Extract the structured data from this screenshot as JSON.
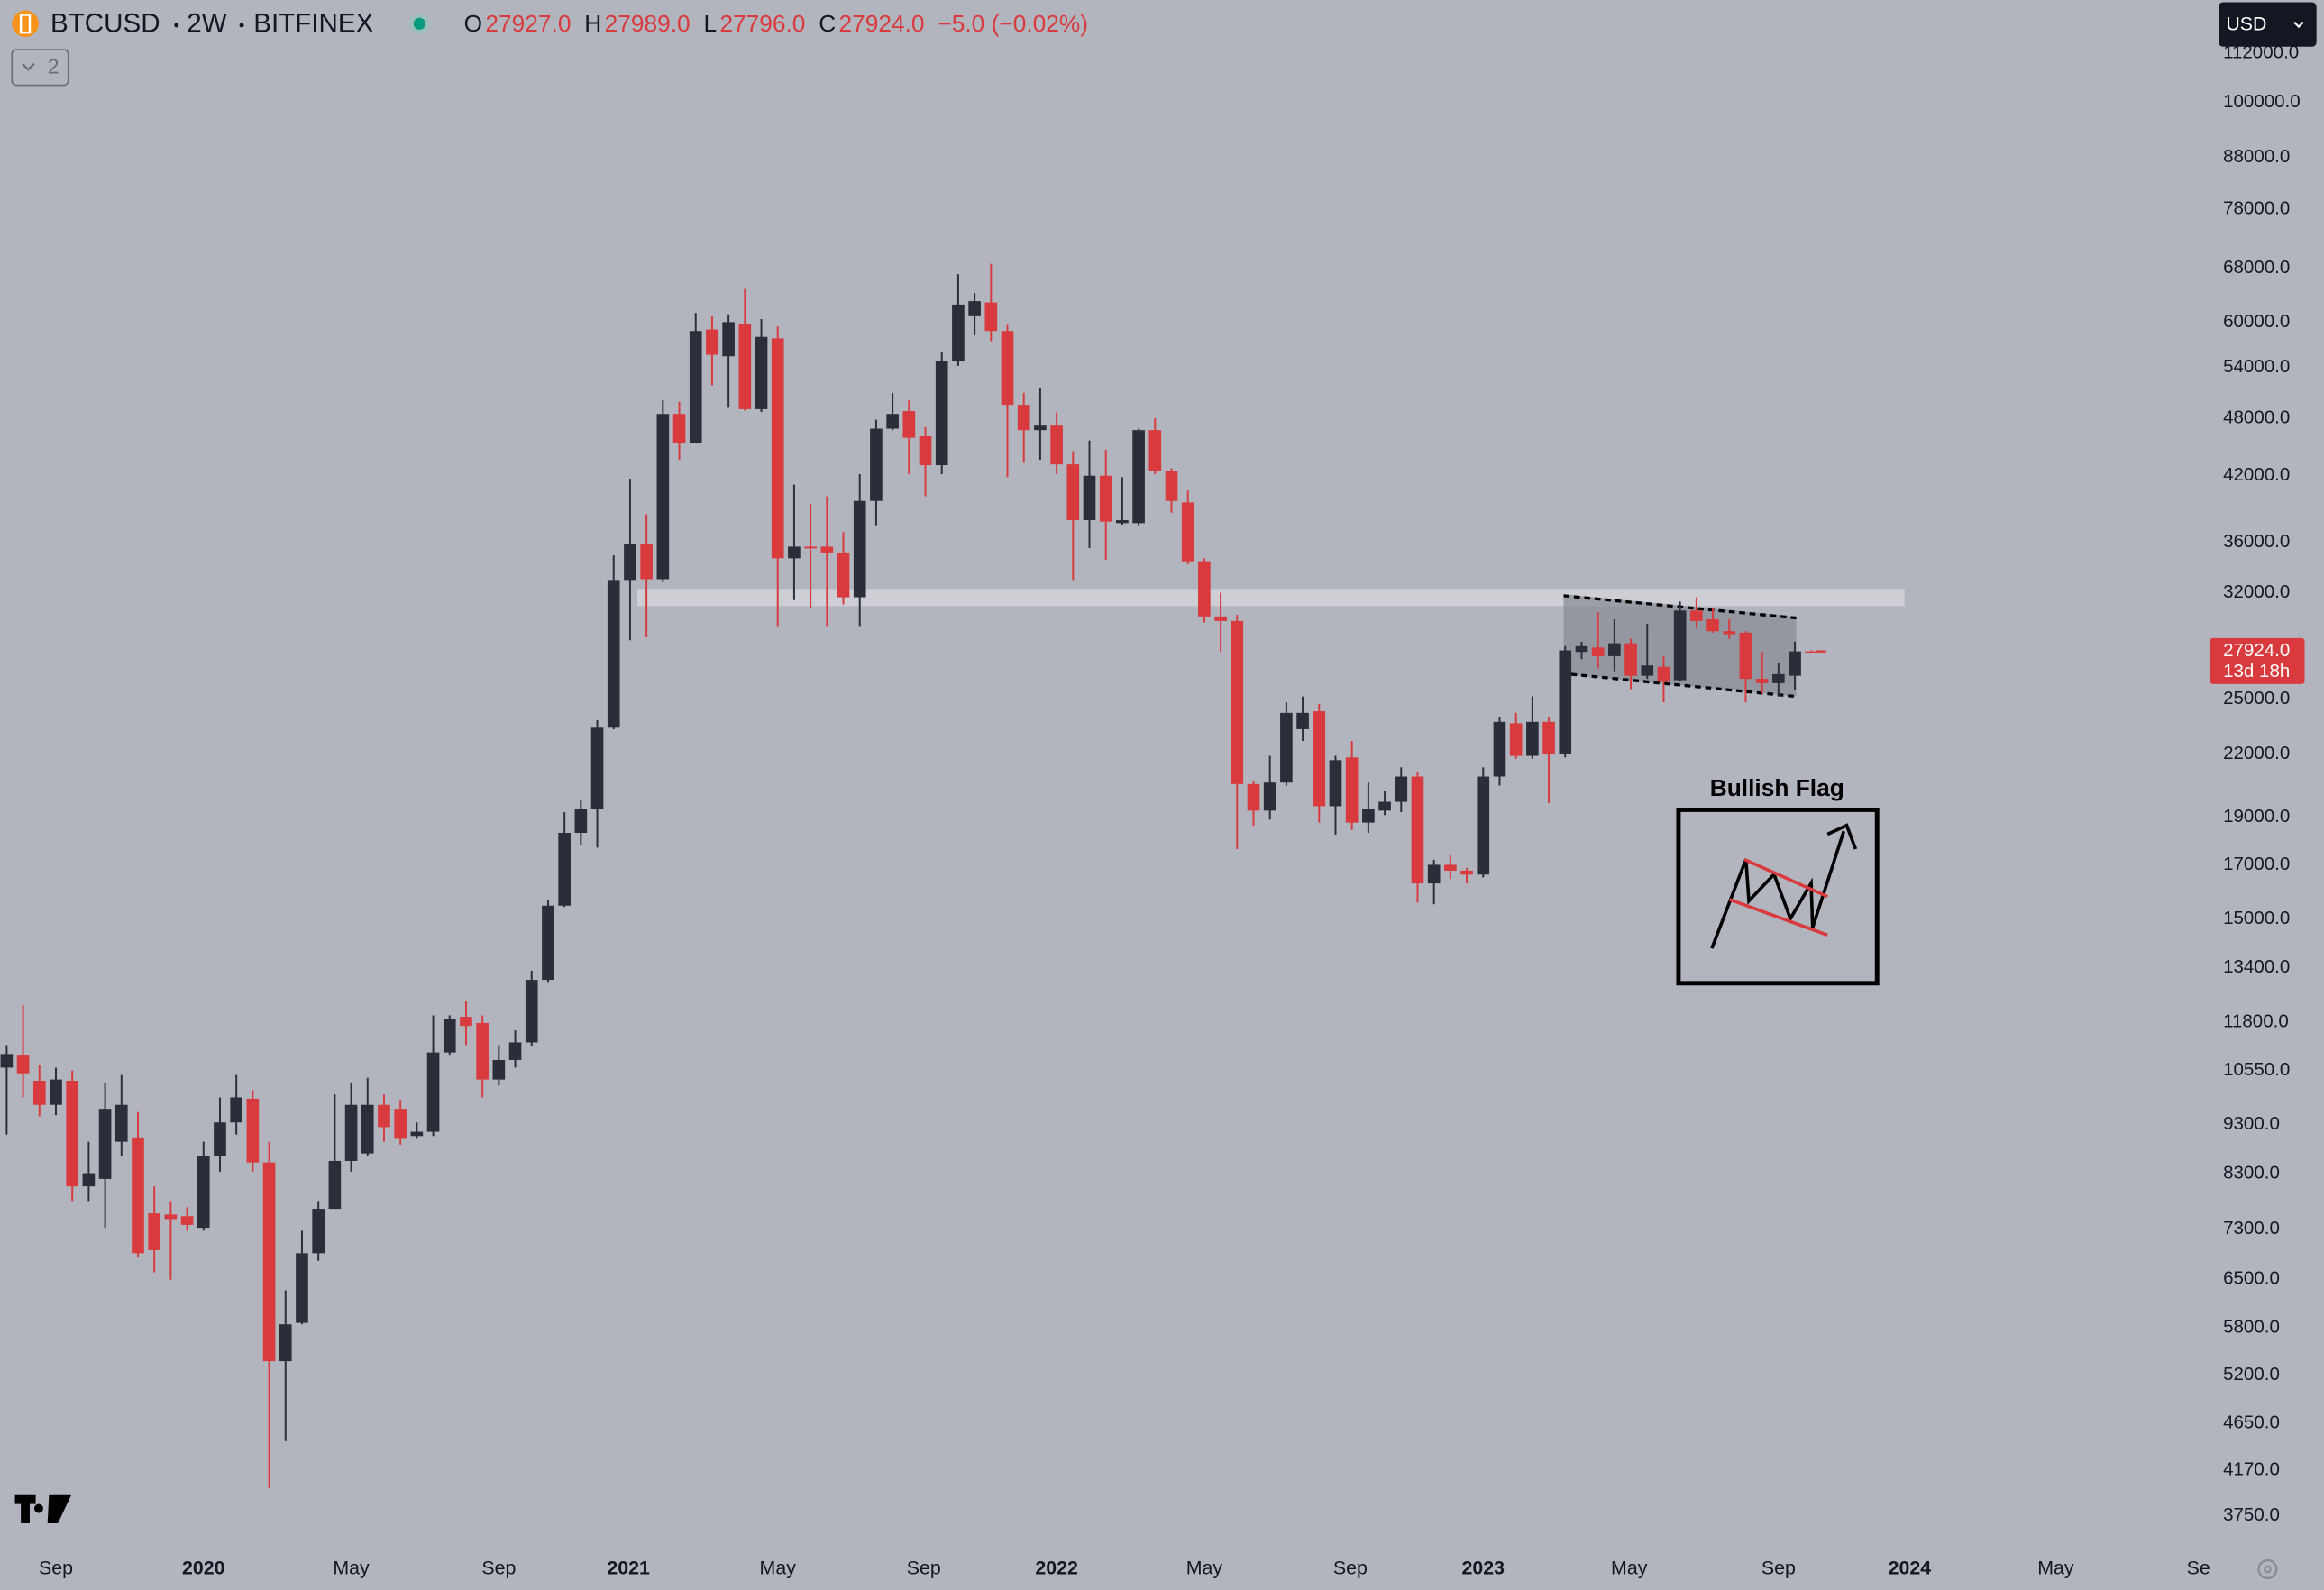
{
  "header": {
    "symbol": "BTCUSD",
    "interval": "2W",
    "exchange": "BITFINEX",
    "ohlc": [
      {
        "key": "O",
        "value": "27927.0"
      },
      {
        "key": "H",
        "value": "27989.0"
      },
      {
        "key": "L",
        "value": "27796.0"
      },
      {
        "key": "C",
        "value": "27924.0"
      }
    ],
    "change": "−5.0 (−0.02%)"
  },
  "toolbar": {
    "currency": "USD",
    "indicator_count": "2"
  },
  "chart_data": {
    "type": "candlestick",
    "log_scale": true,
    "grid": false,
    "up_color": "#2a2e39",
    "down_color": "#d83a3e",
    "annotation": "Bullish Flag",
    "last_price": {
      "value": 27924,
      "label": "27924.0"
    },
    "countdown": "13d 18h",
    "xlim": [
      -0.4,
      134.2
    ],
    "xticks": [
      {
        "value": 3.0,
        "label": "Sep"
      },
      {
        "value": 12.0,
        "label": "2020"
      },
      {
        "value": 21.0,
        "label": "May"
      },
      {
        "value": 30.0,
        "label": "Sep"
      },
      {
        "value": 37.9,
        "label": "2021"
      },
      {
        "value": 47.0,
        "label": "May"
      },
      {
        "value": 55.9,
        "label": "Sep"
      },
      {
        "value": 64.0,
        "label": "2022"
      },
      {
        "value": 73.0,
        "label": "May"
      },
      {
        "value": 81.9,
        "label": "Sep"
      },
      {
        "value": 90.0,
        "label": "2023"
      },
      {
        "value": 98.9,
        "label": "May"
      },
      {
        "value": 108.0,
        "label": "Sep"
      },
      {
        "value": 116.0,
        "label": "2024"
      },
      {
        "value": 124.9,
        "label": "May"
      },
      {
        "value": 133.6,
        "label": "Se"
      }
    ],
    "ylim": [
      3475,
      126800
    ],
    "yticks": [
      {
        "value": 112000,
        "label": "112000.0"
      },
      {
        "value": 100000,
        "label": "100000.0"
      },
      {
        "value": 88000,
        "label": "88000.0"
      },
      {
        "value": 78000,
        "label": "78000.0"
      },
      {
        "value": 68000,
        "label": "68000.0"
      },
      {
        "value": 60000,
        "label": "60000.0"
      },
      {
        "value": 54000,
        "label": "54000.0"
      },
      {
        "value": 48000,
        "label": "48000.0"
      },
      {
        "value": 42000,
        "label": "42000.0"
      },
      {
        "value": 36000,
        "label": "36000.0"
      },
      {
        "value": 32000,
        "label": "32000.0"
      },
      {
        "value": 25000,
        "label": "25000.0"
      },
      {
        "value": 22000,
        "label": "22000.0"
      },
      {
        "value": 19000,
        "label": "19000.0"
      },
      {
        "value": 17000,
        "label": "17000.0"
      },
      {
        "value": 15000,
        "label": "15000.0"
      },
      {
        "value": 13400,
        "label": "13400.0"
      },
      {
        "value": 11800,
        "label": "11800.0"
      },
      {
        "value": 10550,
        "label": "10550.0"
      },
      {
        "value": 9300,
        "label": "9300.0"
      },
      {
        "value": 8300,
        "label": "8300.0"
      },
      {
        "value": 7300,
        "label": "7300.0"
      },
      {
        "value": 6500,
        "label": "6500.0"
      },
      {
        "value": 5800,
        "label": "5800.0"
      },
      {
        "value": 5200,
        "label": "5200.0"
      },
      {
        "value": 4650,
        "label": "4650.0"
      },
      {
        "value": 4170,
        "label": "4170.0"
      },
      {
        "value": 3750,
        "label": "3750.0"
      }
    ],
    "open": [
      10620,
      10920,
      10300,
      9740,
      10300,
      8060,
      8200,
      8940,
      9030,
      7570,
      7550,
      7520,
      7320,
      8640,
      9350,
      9880,
      8520,
      5370,
      5870,
      6900,
      7650,
      8550,
      8700,
      9740,
      9650,
      9060,
      9150,
      11000,
      11950,
      11780,
      10330,
      10810,
      11260,
      13020,
      15470,
      18320,
      19350,
      23390,
      32900,
      35870,
      33030,
      48480,
      45260,
      58980,
      55430,
      59790,
      49020,
      57780,
      34670,
      35620,
      35620,
      35140,
      31670,
      39610,
      46850,
      48800,
      46030,
      43040,
      54760,
      60830,
      62800,
      58780,
      49520,
      46690,
      47180,
      43120,
      37880,
      42000,
      37620,
      37620,
      46690,
      42440,
      39470,
      34430,
      30290,
      29970,
      20520,
      19290,
      20590,
      23310,
      24300,
      19490,
      21830,
      18760,
      19290,
      19690,
      20880,
      16290,
      17010,
      16780,
      16630,
      20880,
      23630,
      21910,
      23710,
      21990,
      27890,
      28180,
      27620,
      28460,
      26390,
      26940,
      26120,
      30710,
      30090,
      29270,
      29170,
      26200,
      25940,
      26390,
      27927
    ],
    "high": [
      11190,
      12280,
      10690,
      10620,
      10550,
      8940,
      10260,
      10440,
      9580,
      8060,
      7790,
      7680,
      8940,
      9910,
      10440,
      10080,
      8940,
      6330,
      7270,
      7790,
      9980,
      10260,
      10370,
      9980,
      9850,
      9350,
      11990,
      11990,
      12410,
      11990,
      11190,
      11580,
      13300,
      15690,
      19220,
      19760,
      23800,
      34900,
      41700,
      38410,
      50040,
      49870,
      61300,
      60830,
      61100,
      64800,
      60420,
      59400,
      41140,
      39340,
      40030,
      36850,
      42150,
      47830,
      50900,
      50040,
      47000,
      55980,
      67070,
      64200,
      68710,
      59610,
      50900,
      51440,
      48640,
      44460,
      45580,
      44610,
      41850,
      46850,
      48000,
      42730,
      40580,
      34670,
      32000,
      30400,
      20660,
      21910,
      24810,
      25150,
      24720,
      21910,
      22680,
      20590,
      20170,
      21330,
      21100,
      17210,
      17390,
      16890,
      21330,
      23960,
      24210,
      25150,
      23960,
      28270,
      28560,
      30600,
      30090,
      28760,
      29770,
      27610,
      31350,
      31670,
      30920,
      30090,
      29270,
      27890,
      27180,
      28560,
      27989
    ],
    "low": [
      9090,
      9910,
      9480,
      9510,
      7790,
      7790,
      7320,
      8640,
      6830,
      6600,
      6490,
      7270,
      7270,
      8340,
      9090,
      8340,
      4000,
      4460,
      5850,
      6780,
      7650,
      8340,
      8640,
      8940,
      8880,
      9000,
      9060,
      10920,
      11190,
      9910,
      10190,
      10620,
      11150,
      12930,
      15420,
      17820,
      17700,
      23310,
      28660,
      28860,
      32810,
      43580,
      45260,
      51800,
      49180,
      48850,
      48700,
      29560,
      31460,
      30920,
      29570,
      31140,
      29570,
      37360,
      46690,
      42150,
      40030,
      42150,
      54200,
      58180,
      57390,
      41850,
      43280,
      43580,
      42150,
      32900,
      35510,
      34550,
      37490,
      37360,
      42150,
      38540,
      34190,
      29870,
      27890,
      17640,
      18630,
      18890,
      20450,
      22680,
      18760,
      18250,
      18440,
      18320,
      19090,
      19220,
      15580,
      15520,
      16460,
      16290,
      16520,
      20450,
      21760,
      21760,
      19630,
      21830,
      27430,
      26850,
      26670,
      25590,
      26200,
      24810,
      26030,
      29470,
      29170,
      28760,
      24810,
      25320,
      25150,
      25500,
      27796
    ],
    "close": [
      10960,
      10480,
      9740,
      10330,
      8060,
      8310,
      9650,
      9740,
      6900,
      6950,
      7470,
      7370,
      8640,
      9350,
      9910,
      8520,
      5370,
      5850,
      6900,
      7650,
      8550,
      9740,
      9740,
      9250,
      9000,
      9150,
      11000,
      11900,
      11700,
      10330,
      10810,
      11260,
      13020,
      15470,
      18320,
      19350,
      23390,
      32900,
      35870,
      33030,
      48480,
      45260,
      58780,
      55620,
      60000,
      49020,
      57980,
      34670,
      35620,
      35510,
      35140,
      31670,
      39610,
      46850,
      48480,
      45870,
      43040,
      54760,
      62500,
      63000,
      58780,
      49520,
      46690,
      47180,
      43120,
      37880,
      42000,
      37750,
      37880,
      46690,
      42440,
      39610,
      34430,
      30290,
      29970,
      20520,
      19290,
      20590,
      24210,
      24210,
      19490,
      21690,
      18760,
      19350,
      19690,
      20880,
      16290,
      17010,
      16780,
      16630,
      20880,
      23710,
      21910,
      23710,
      21990,
      27990,
      28270,
      27620,
      28460,
      26390,
      27030,
      26030,
      30710,
      29970,
      29270,
      29070,
      26200,
      25940,
      26490,
      27927,
      27924
    ]
  }
}
